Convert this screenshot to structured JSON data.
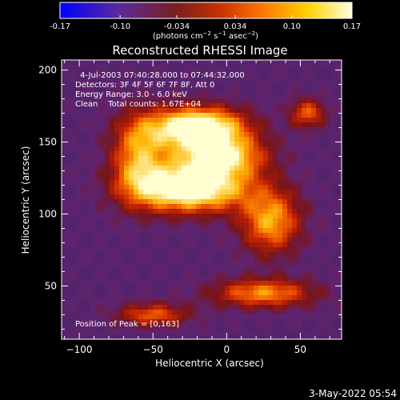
{
  "chart_data": {
    "type": "heatmap",
    "title": "Reconstructed RHESSI Image",
    "xlabel": "Heliocentric X (arcsec)",
    "ylabel": "Heliocentric Y (arcsec)",
    "xlim": [
      -112,
      78
    ],
    "ylim": [
      13,
      207
    ],
    "xticks": [
      -100,
      -50,
      0,
      50
    ],
    "yticks": [
      50,
      100,
      150,
      200
    ],
    "colorbar": {
      "min": -0.17,
      "max": 0.17,
      "ticks": [
        "-0.17",
        "-0.10",
        "-0.034",
        "0.034",
        "0.10",
        "0.17"
      ],
      "unit_parts": [
        "(photons cm",
        "−2",
        " s",
        "−1",
        " asec",
        "−2",
        ")"
      ],
      "colors": [
        "#0000ff",
        "#5a2a9e",
        "#7a1f1f",
        "#c83200",
        "#ff7a00",
        "#ffd200",
        "#ffffe0"
      ]
    },
    "annotations": {
      "line1": "4-Jul-2003 07:40:28.000 to 07:44:32.000",
      "line2": "Detectors: 3F 4F 5F 6F 7F 8F, Att 0",
      "line3": "Energy Range: 3.0 - 6.0 keV",
      "line4": "Clean    Total counts: 1.67E+04",
      "peak": "Position of Peak = [0,163]"
    },
    "peak_position": [
      0,
      163
    ],
    "features": [
      {
        "name": "upper bright region",
        "x": -20,
        "y": 160,
        "value": 0.17
      },
      {
        "name": "central bright region",
        "x": -25,
        "y": 118,
        "value": 0.17
      },
      {
        "name": "bridge region",
        "x": -5,
        "y": 140,
        "value": 0.12
      },
      {
        "name": "lower arm region",
        "x": 25,
        "y": 45,
        "value": 0.08
      },
      {
        "name": "lower left region",
        "x": -50,
        "y": 30,
        "value": 0.06
      }
    ]
  },
  "timestamp": "3-May-2022 05:54"
}
